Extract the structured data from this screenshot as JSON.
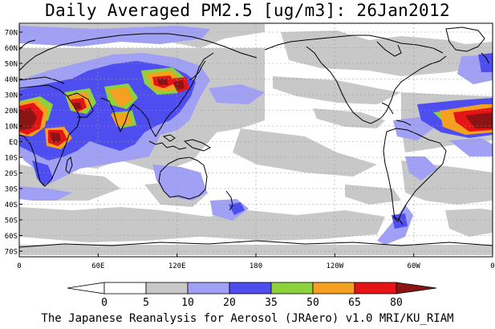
{
  "title": "Daily Averaged PM2.5 [ug/m3]: 26Jan2012",
  "credit": "The Japanese Reanalysis for Aerosol (JRAero) v1.0 MRI/KU_RIAM",
  "map": {
    "lat_labels": [
      "70N",
      "60N",
      "50N",
      "40N",
      "30N",
      "20N",
      "10N",
      "EQ",
      "10S",
      "20S",
      "30S",
      "40S",
      "50S",
      "60S",
      "70S"
    ],
    "lon_labels": [
      "0",
      "60E",
      "120E",
      "180",
      "120W",
      "60W",
      "0"
    ]
  },
  "colorbar": {
    "ticks": [
      "0",
      "5",
      "10",
      "20",
      "35",
      "50",
      "65",
      "80"
    ],
    "bins": [
      {
        "range": "<0",
        "color": "#ffffff"
      },
      {
        "range": "0-5",
        "color": "#ffffff"
      },
      {
        "range": "5-10",
        "color": "#c8c8c8"
      },
      {
        "range": "10-20",
        "color": "#a0a0f5"
      },
      {
        "range": "20-35",
        "color": "#4e4ef0"
      },
      {
        "range": "35-50",
        "color": "#8cd23c"
      },
      {
        "range": "50-65",
        "color": "#f5a01e"
      },
      {
        "range": "65-80",
        "color": "#e61414"
      },
      {
        "range": ">80",
        "color": "#8c1414"
      }
    ]
  },
  "colors": {
    "coast": "#000000",
    "grid": "#9a9a9a"
  }
}
